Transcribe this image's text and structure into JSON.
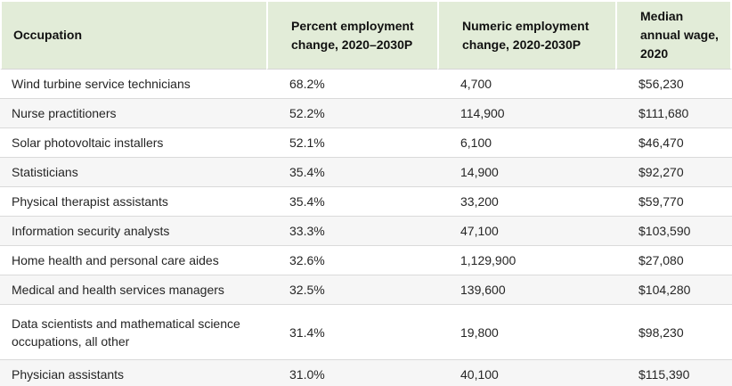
{
  "chart_data": {
    "type": "table",
    "columns": [
      "Occupation",
      "Percent employment change, 2020–2030P",
      "Numeric employment change, 2020-2030P",
      "Median annual wage, 2020"
    ],
    "rows": [
      [
        "Wind turbine service technicians",
        "68.2%",
        "4,700",
        "$56,230"
      ],
      [
        "Nurse practitioners",
        "52.2%",
        "114,900",
        "$111,680"
      ],
      [
        "Solar photovoltaic installers",
        "52.1%",
        "6,100",
        "$46,470"
      ],
      [
        "Statisticians",
        "35.4%",
        "14,900",
        "$92,270"
      ],
      [
        "Physical therapist assistants",
        "35.4%",
        "33,200",
        "$59,770"
      ],
      [
        "Information security analysts",
        "33.3%",
        "47,100",
        "$103,590"
      ],
      [
        "Home health and personal care aides",
        "32.6%",
        "1,129,900",
        "$27,080"
      ],
      [
        "Medical and health services managers",
        "32.5%",
        "139,600",
        "$104,280"
      ],
      [
        "Data scientists and mathematical science occupations, all other",
        "31.4%",
        "19,800",
        "$98,230"
      ],
      [
        "Physician assistants",
        "31.0%",
        "40,100",
        "$115,390"
      ]
    ],
    "percent_values": [
      68.2,
      52.2,
      52.1,
      35.4,
      35.4,
      33.3,
      32.6,
      32.5,
      31.4,
      31.0
    ],
    "numeric_values": [
      4700,
      114900,
      6100,
      14900,
      33200,
      47100,
      1129900,
      139600,
      19800,
      40100
    ],
    "wage_values": [
      56230,
      111680,
      46470,
      92270,
      59770,
      103590,
      27080,
      104280,
      98230,
      115390
    ],
    "layout": {
      "grid": "horizontal row separators",
      "legend": "none"
    }
  },
  "colors": {
    "header_background": "#e2ecd8",
    "alt_row_background": "#f6f6f6",
    "separator": "#dadada",
    "text": "#252525"
  }
}
